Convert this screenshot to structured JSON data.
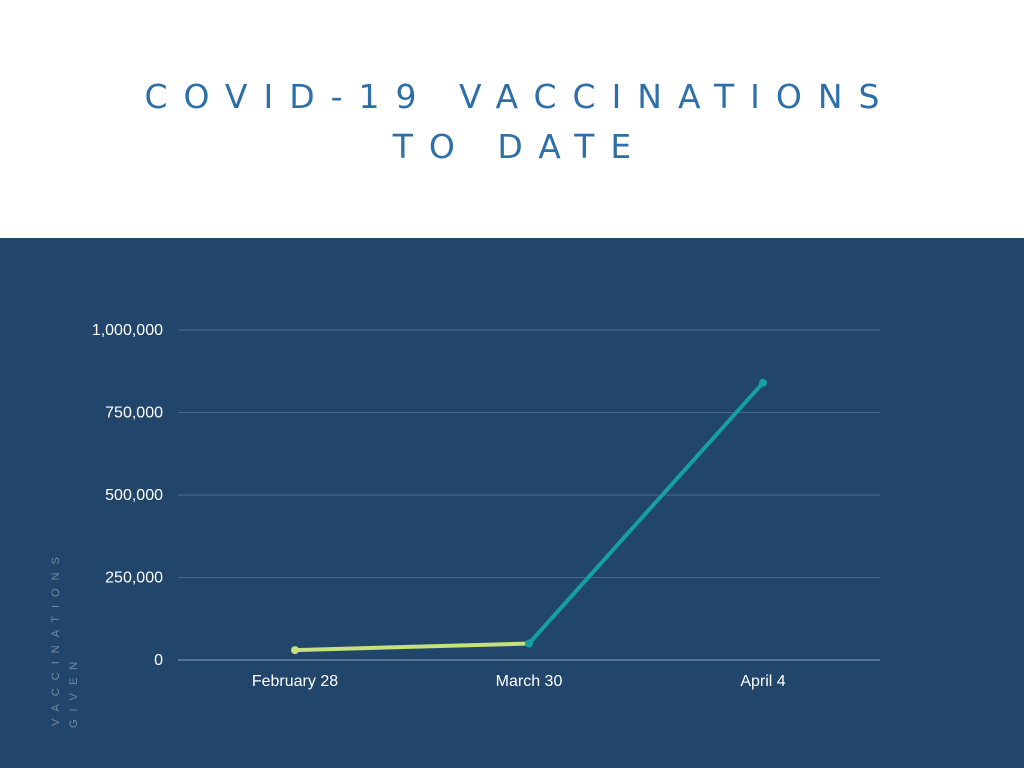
{
  "title_line1": "COVID-19 VACCINATIONS",
  "title_line2": "TO DATE",
  "chart_data": {
    "type": "line",
    "title": "COVID-19 VACCINATIONS TO DATE",
    "xlabel": "",
    "ylabel_line1": "VACCINATIONS",
    "ylabel_line2": "GIVEN",
    "categories": [
      "February 28",
      "March 30",
      "April 4"
    ],
    "y_ticks": [
      "0",
      "250,000",
      "500,000",
      "750,000",
      "1,000,000"
    ],
    "y_tick_values": [
      0,
      250000,
      500000,
      750000,
      1000000
    ],
    "ylim": [
      0,
      1000000
    ],
    "grid": true,
    "values": [
      30000,
      50000,
      840000
    ],
    "colors": {
      "background": "#22466b",
      "segment1": "#c6e07a",
      "segment2": "#15a0a3",
      "grid": "#4a6a8c",
      "text": "#ffffff"
    }
  }
}
